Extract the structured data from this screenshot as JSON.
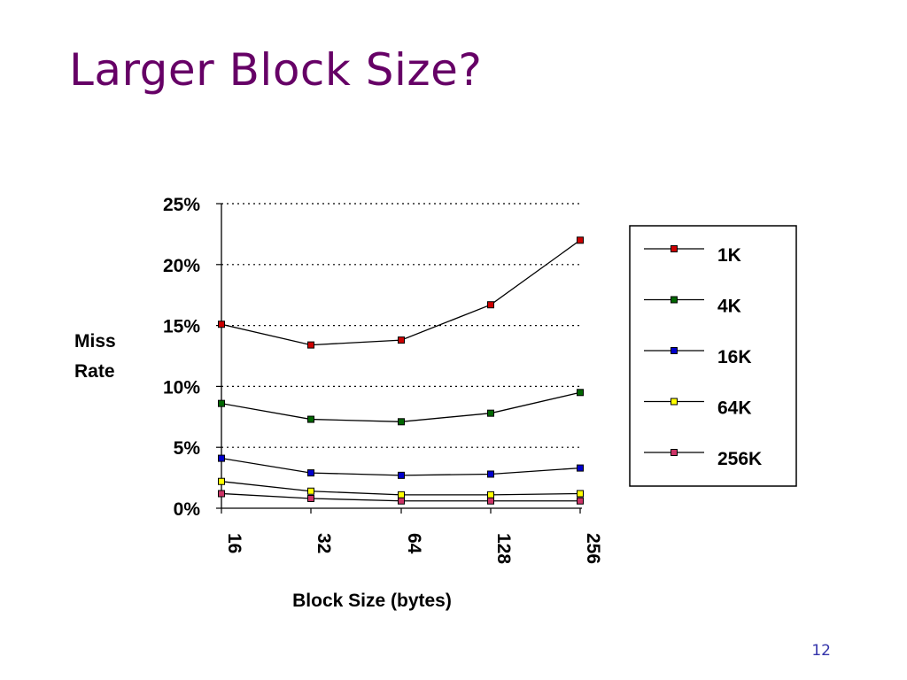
{
  "slide": {
    "title": "Larger Block Size?",
    "page_number": "12"
  },
  "colors": {
    "title": "#660066",
    "page_number": "#3333aa"
  },
  "chart_data": {
    "type": "line",
    "title": "",
    "xlabel": "Block Size (bytes)",
    "ylabel": "Miss Rate",
    "x": [
      "16",
      "32",
      "64",
      "128",
      "256"
    ],
    "ylim": [
      0,
      25
    ],
    "yticks": [
      "0%",
      "5%",
      "10%",
      "15%",
      "20%",
      "25%"
    ],
    "y_unit": "%",
    "grid": "horizontal dotted",
    "legend": "right",
    "series": [
      {
        "name": "1K",
        "color": "#cc0000",
        "values": [
          15.1,
          13.4,
          13.8,
          16.7,
          22.0
        ]
      },
      {
        "name": "4K",
        "color": "#006600",
        "values": [
          8.6,
          7.3,
          7.1,
          7.8,
          9.5
        ]
      },
      {
        "name": "16K",
        "color": "#0000cc",
        "values": [
          4.1,
          2.9,
          2.7,
          2.8,
          3.3
        ]
      },
      {
        "name": "64K",
        "color": "#ffff00",
        "values": [
          2.2,
          1.4,
          1.1,
          1.1,
          1.2
        ]
      },
      {
        "name": "256K",
        "color": "#cc3366",
        "values": [
          1.2,
          0.8,
          0.6,
          0.6,
          0.6
        ]
      }
    ]
  }
}
